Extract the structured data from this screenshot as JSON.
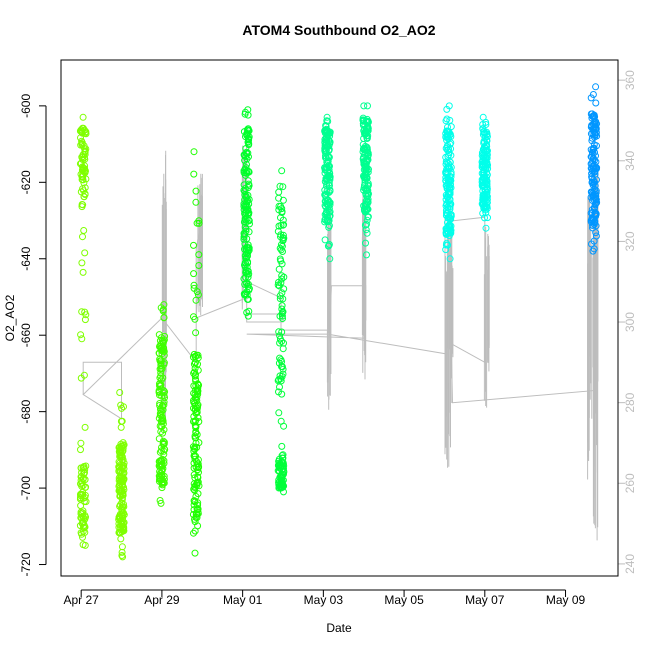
{
  "chart_data": {
    "type": "scatter",
    "title": "ATOM4 Southbound O2_AO2",
    "xlabel": "Date",
    "ylabel": "O2_AO2",
    "x_ticks": [
      "Apr 27",
      "Apr 29",
      "May 01",
      "May 03",
      "May 05",
      "May 07",
      "May 09"
    ],
    "x_tick_days": [
      0,
      2,
      4,
      6,
      8,
      10,
      12
    ],
    "xlim_days": [
      -0.5,
      13.3
    ],
    "y_ticks": [
      -600,
      -620,
      -640,
      -660,
      -680,
      -700,
      -720
    ],
    "ylim": [
      -723,
      -588
    ],
    "y2_ticks": [
      360,
      340,
      320,
      300,
      280,
      260,
      240
    ],
    "y2lim": [
      237,
      365
    ],
    "point_series": [
      {
        "day": 0.05,
        "min": -715,
        "max": -603,
        "dense": [
          [
            -713,
            -694
          ],
          [
            -626,
            -605
          ]
        ],
        "color": "#7fff00"
      },
      {
        "day": 1.0,
        "min": -718,
        "max": -675,
        "dense": [
          [
            -712,
            -688
          ]
        ],
        "color": "#7fff00"
      },
      {
        "day": 2.0,
        "min": -704,
        "max": -652,
        "dense": [
          [
            -700,
            -660
          ]
        ],
        "color": "#3fff00"
      },
      {
        "day": 2.85,
        "min": -717,
        "max": -612,
        "dense": [
          [
            -712,
            -665
          ]
        ],
        "color": "#1fff00"
      },
      {
        "day": 4.1,
        "min": -655,
        "max": -601,
        "dense": [
          [
            -650,
            -605
          ]
        ],
        "color": "#00ff2a"
      },
      {
        "day": 4.95,
        "min": -701,
        "max": -617,
        "dense": [
          [
            -675,
            -622
          ],
          [
            -700,
            -692
          ]
        ],
        "color": "#00ff3a"
      },
      {
        "day": 6.1,
        "min": -640,
        "max": -603,
        "dense": [
          [
            -632,
            -606
          ]
        ],
        "color": "#00ff90"
      },
      {
        "day": 7.05,
        "min": -639,
        "max": -600,
        "dense": [
          [
            -628,
            -603
          ]
        ],
        "color": "#00ff90"
      },
      {
        "day": 9.1,
        "min": -640,
        "max": -600,
        "dense": [
          [
            -634,
            -606
          ]
        ],
        "color": "#00ffea"
      },
      {
        "day": 10.0,
        "min": -632,
        "max": -603,
        "dense": [
          [
            -628,
            -606
          ]
        ],
        "color": "#00ffea"
      },
      {
        "day": 12.7,
        "min": -638,
        "max": -595,
        "dense": [
          [
            -632,
            -602
          ]
        ],
        "color": "#0096ff"
      }
    ],
    "line_series": {
      "name": "",
      "color": "#bdbdbd",
      "points": [
        [
          0.05,
          282
        ],
        [
          0.05,
          290
        ],
        [
          1.0,
          290
        ],
        [
          1.0,
          276
        ],
        [
          0.05,
          282
        ],
        [
          2.0,
          301
        ],
        [
          2.85,
          290
        ],
        [
          2.85,
          318
        ],
        [
          3.0,
          327
        ],
        [
          2.85,
          301
        ],
        [
          4.1,
          306
        ],
        [
          4.1,
          302
        ],
        [
          5.0,
          302
        ],
        [
          5.0,
          300
        ],
        [
          4.1,
          300
        ],
        [
          4.1,
          310
        ],
        [
          4.95,
          306
        ],
        [
          4.95,
          298
        ],
        [
          6.1,
          298
        ],
        [
          6.1,
          285
        ],
        [
          6.2,
          309
        ],
        [
          7.05,
          309
        ],
        [
          7.05,
          290
        ],
        [
          7.05,
          296
        ],
        [
          4.1,
          297
        ],
        [
          6.1,
          297
        ],
        [
          9.1,
          292
        ],
        [
          9.1,
          295
        ],
        [
          10.0,
          290
        ],
        [
          10.0,
          326
        ],
        [
          9.1,
          325
        ],
        [
          9.2,
          280
        ],
        [
          12.7,
          283
        ],
        [
          12.7,
          300
        ],
        [
          12.7,
          250
        ]
      ],
      "spikes": [
        {
          "day": 2.05,
          "low": 270,
          "high": 345
        },
        {
          "day": 2.95,
          "low": 300,
          "high": 337
        },
        {
          "day": 4.05,
          "low": 297,
          "high": 345
        },
        {
          "day": 6.15,
          "low": 278,
          "high": 335
        },
        {
          "day": 7.0,
          "low": 285,
          "high": 335
        },
        {
          "day": 9.05,
          "low": 263,
          "high": 331
        },
        {
          "day": 9.15,
          "low": 267,
          "high": 328
        },
        {
          "day": 10.05,
          "low": 278,
          "high": 326
        },
        {
          "day": 12.6,
          "low": 260,
          "high": 333
        },
        {
          "day": 12.75,
          "low": 245,
          "high": 345
        }
      ]
    }
  }
}
